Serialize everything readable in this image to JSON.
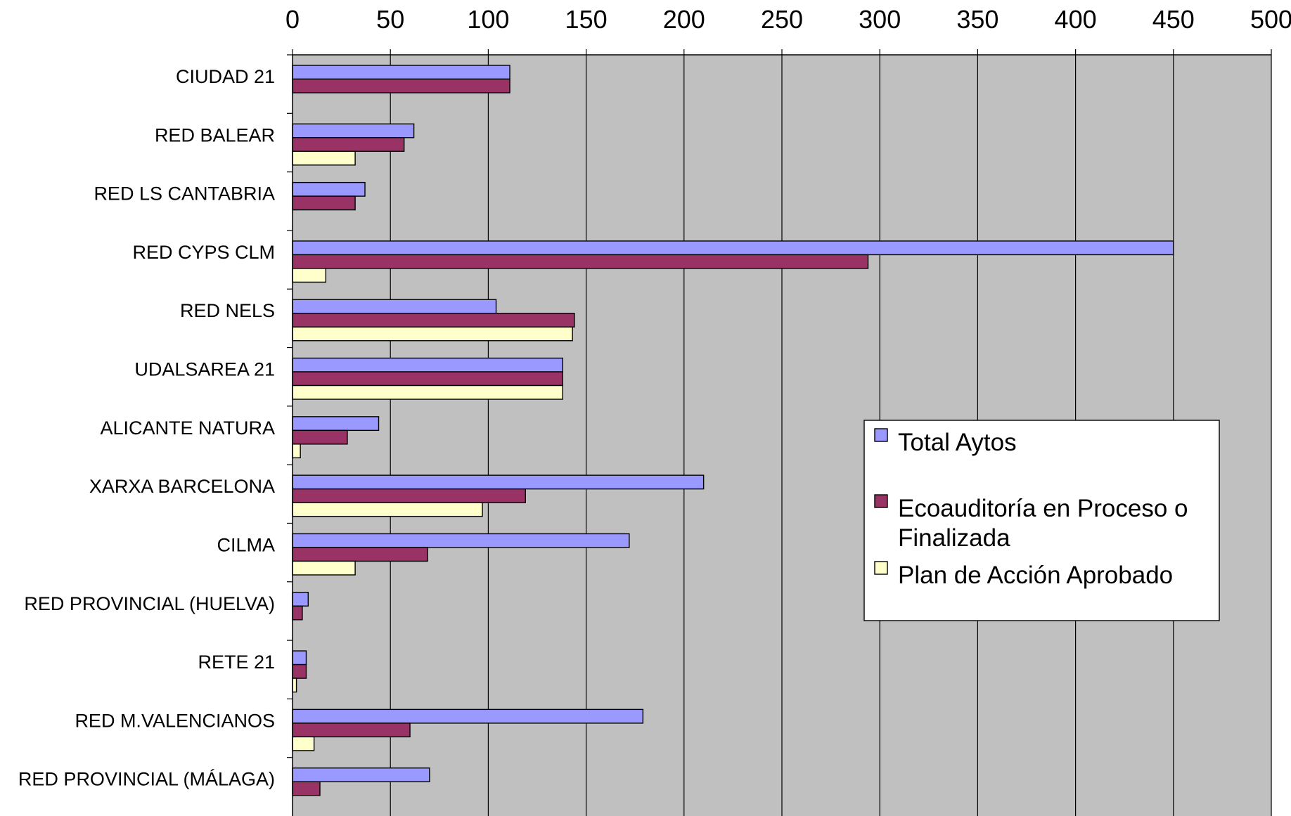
{
  "chart_data": {
    "type": "bar",
    "orientation": "horizontal",
    "categories": [
      "CIUDAD 21",
      "RED BALEAR",
      "RED LS CANTABRIA",
      "RED CYPS CLM",
      "RED NELS",
      "UDALSAREA 21",
      "ALICANTE NATURA",
      "XARXA BARCELONA",
      "CILMA",
      "RED PROVINCIAL (HUELVA)",
      "RETE 21",
      "RED M.VALENCIANOS",
      "RED PROVINCIAL (MÁLAGA)"
    ],
    "series": [
      {
        "name": "Total Aytos",
        "color": "#9999ff",
        "values": [
          111,
          62,
          37,
          450,
          104,
          138,
          44,
          210,
          172,
          8,
          7,
          179,
          70
        ]
      },
      {
        "name": "Ecoauditoría en Proceso o Finalizada",
        "color": "#993366",
        "values": [
          111,
          57,
          32,
          294,
          144,
          138,
          28,
          119,
          69,
          5,
          7,
          60,
          14
        ]
      },
      {
        "name": "Plan de Acción Aprobado",
        "color": "#ffffcc",
        "values": [
          null,
          32,
          null,
          17,
          143,
          138,
          4,
          97,
          32,
          null,
          2,
          11,
          null
        ]
      }
    ],
    "xlim": [
      0,
      500
    ],
    "xticks": [
      0,
      50,
      100,
      150,
      200,
      250,
      300,
      350,
      400,
      450,
      500
    ],
    "x_axis_position": "top",
    "grid": true,
    "plot_background": "#c0c0c0",
    "legend_position": "right"
  },
  "legend": {
    "items": [
      {
        "lines": [
          "Total Aytos"
        ]
      },
      {
        "lines": [
          "Ecoauditoría en Proceso o",
          "Finalizada"
        ]
      },
      {
        "lines": [
          "Plan de Acción Aprobado"
        ]
      }
    ]
  }
}
